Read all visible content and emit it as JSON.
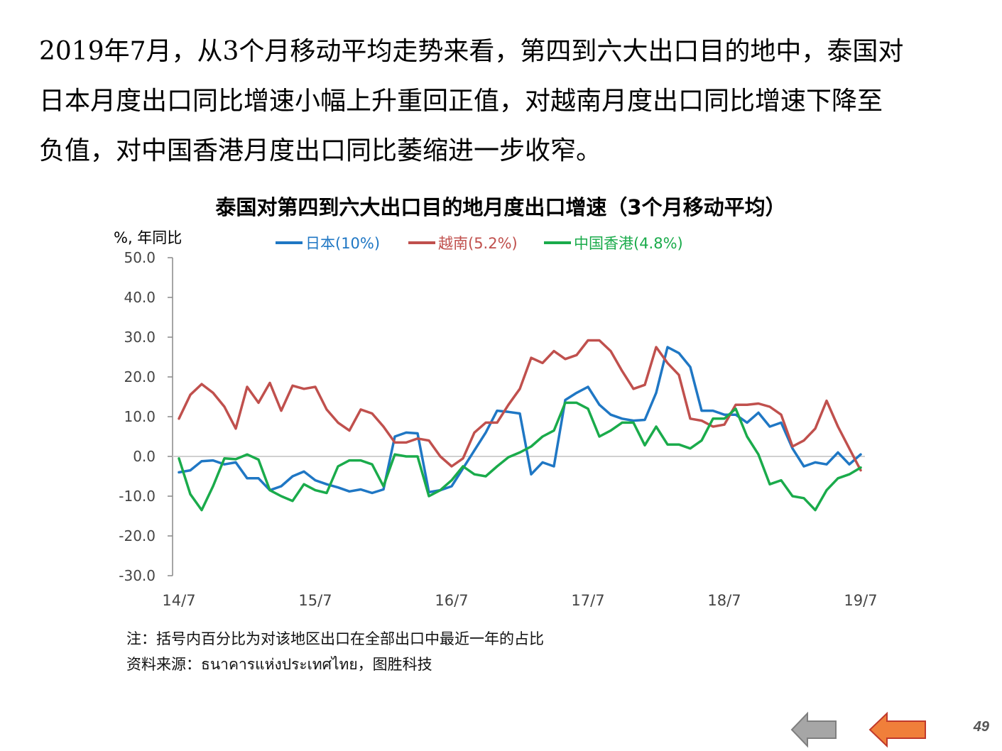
{
  "intro": {
    "lines": [
      "2019年7月，从3个月移动平均走势来看，第四到六大出口目的地中，泰国对",
      "日本月度出口同比增速小幅上升重回正值，对越南月度出口同比增速下降至",
      "负值，对中国香港月度出口同比萎缩进一步收窄。"
    ]
  },
  "notes": {
    "note": "注：括号内百分比为对该地区出口在全部出口中最近一年的占比",
    "source": "资料来源：ธนาคารแห่งประเทศไทย，图胜科技"
  },
  "page_number": "49",
  "nav": {
    "prev_icon": "left-arrow-icon",
    "next_icon": "left-arrow-orange-icon"
  },
  "colors": {
    "japan": "#1f77c4",
    "vietnam": "#c0504d",
    "hongkong": "#1aab4b",
    "axis": "#888888",
    "zero": "#d0d0d0",
    "prev_arrow": "#a6a6a6",
    "next_arrow": "#f07f3a"
  },
  "chart_data": {
    "type": "line",
    "title": "泰国对第四到六大出口目的地月度出口增速（3个月移动平均）",
    "ylabel": "%, 年同比",
    "ylim": [
      -30,
      50
    ],
    "yticks": [
      "50.0",
      "40.0",
      "30.0",
      "20.0",
      "10.0",
      "0.0",
      "-10.0",
      "-20.0",
      "-30.0"
    ],
    "ytick_values": [
      50,
      40,
      30,
      20,
      10,
      0,
      -10,
      -20,
      -30
    ],
    "xtick_labels": [
      "14/7",
      "15/7",
      "16/7",
      "17/7",
      "18/7",
      "19/7"
    ],
    "xtick_index": [
      0,
      12,
      24,
      36,
      48,
      60
    ],
    "legend_position": "top",
    "series": [
      {
        "name": "日本(10%)",
        "values": [
          -4,
          -3.5,
          -1.2,
          -1,
          -2,
          -1.5,
          -5.5,
          -5.5,
          -8.5,
          -7.5,
          -5,
          -3.8,
          -6,
          -7,
          -7.8,
          -8.8,
          -8.3,
          -9.2,
          -8.3,
          5,
          6,
          5.8,
          -9,
          -8.5,
          -7.5,
          -3,
          1.5,
          6,
          11.5,
          11.2,
          10.8,
          -4.5,
          -1.5,
          -2.5,
          14.2,
          16,
          17.5,
          13,
          10.5,
          9.5,
          9,
          9.2,
          16,
          27.5,
          26,
          22.5,
          11.5,
          11.5,
          10.5,
          10.5,
          8.5,
          11,
          7.5,
          8.5,
          2,
          -2.5,
          -1.5,
          -2,
          1,
          -2,
          0.5
        ]
      },
      {
        "name": "越南(5.2%)",
        "values": [
          9.5,
          15.5,
          18.2,
          16,
          12.5,
          7,
          17.5,
          13.5,
          18.5,
          11.5,
          17.8,
          17,
          17.5,
          11.8,
          8.5,
          6.5,
          11.8,
          10.8,
          7.5,
          3.5,
          3.5,
          4.5,
          4,
          0,
          -2.5,
          -0.5,
          6,
          8.5,
          8.5,
          13,
          17,
          24.8,
          23.5,
          26.5,
          24.5,
          25.5,
          29.2,
          29.2,
          26.5,
          21.5,
          17,
          18,
          27.5,
          23.5,
          20.5,
          9.5,
          9,
          7.5,
          8,
          13,
          13,
          13.3,
          12.5,
          10.5,
          2.5,
          4,
          7,
          14,
          7.5,
          2,
          -3.5
        ]
      },
      {
        "name": "中国香港(4.8%)",
        "values": [
          -0.5,
          -9.5,
          -13.5,
          -7.5,
          -0.5,
          -0.7,
          0.5,
          -0.8,
          -8.5,
          -10,
          -11.2,
          -7,
          -8.5,
          -9.2,
          -2.5,
          -1,
          -1,
          -2,
          -7.5,
          0.5,
          0,
          0,
          -10,
          -8.5,
          -6,
          -2.5,
          -4.5,
          -5,
          -2.5,
          -0.2,
          1,
          2.5,
          5,
          6.5,
          13.5,
          13.5,
          12,
          5,
          6.5,
          8.5,
          8.5,
          2.8,
          7.5,
          3,
          3,
          2,
          4,
          9.5,
          9.5,
          12,
          5,
          0.5,
          -7,
          -6,
          -10,
          -10.5,
          -13.5,
          -8.5,
          -5.5,
          -4.5,
          -2.8
        ]
      }
    ]
  }
}
